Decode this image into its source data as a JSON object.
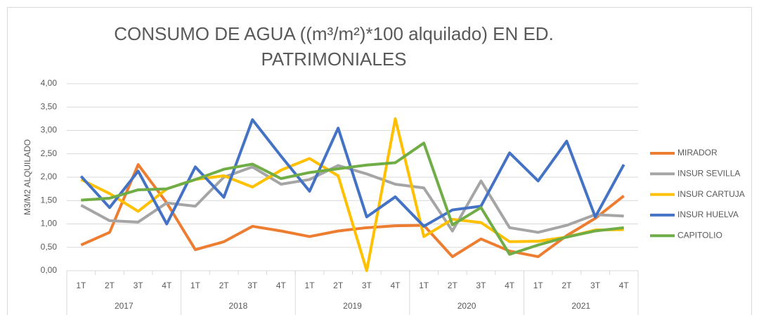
{
  "chart_data": {
    "type": "line",
    "title": [
      "CONSUMO DE AGUA ((m³/m²)*100 alquilado) EN ED.",
      "PATRIMONIALES"
    ],
    "y_label": "M3/M2 ALQUILADO",
    "categories": [
      "1T",
      "2T",
      "3T",
      "4T",
      "1T",
      "2T",
      "3T",
      "4T",
      "1T",
      "2T",
      "3T",
      "4T",
      "1T",
      "2T",
      "3T",
      "4T",
      "1T",
      "2T",
      "3T",
      "4T"
    ],
    "groups": [
      "2017",
      "2018",
      "2019",
      "2020",
      "2021"
    ],
    "ylim": [
      0,
      4
    ],
    "yticks": [
      {
        "value": 0,
        "label": "0,00"
      },
      {
        "value": 0.5,
        "label": "0,50"
      },
      {
        "value": 1,
        "label": "1,00"
      },
      {
        "value": 1.5,
        "label": "1,50"
      },
      {
        "value": 2,
        "label": "2,00"
      },
      {
        "value": 2.5,
        "label": "2,50"
      },
      {
        "value": 3,
        "label": "3,00"
      },
      {
        "value": 3.5,
        "label": "3,50"
      },
      {
        "value": 4,
        "label": "4,00"
      }
    ],
    "grid": true,
    "legend": "right",
    "series": [
      {
        "name": "MIRADOR",
        "color": "#ED7D31",
        "values": [
          0.55,
          0.82,
          2.27,
          1.45,
          0.45,
          0.62,
          0.95,
          0.85,
          0.73,
          0.85,
          0.92,
          0.96,
          0.97,
          0.3,
          0.68,
          0.42,
          0.3,
          0.75,
          1.12,
          1.6
        ]
      },
      {
        "name": "INSUR SEVILLA",
        "color": "#A5A5A5",
        "values": [
          1.4,
          1.07,
          1.04,
          1.45,
          1.38,
          2.0,
          2.22,
          1.85,
          1.95,
          2.25,
          2.07,
          1.85,
          1.77,
          0.85,
          1.92,
          0.92,
          0.82,
          0.97,
          1.2,
          1.17
        ]
      },
      {
        "name": "INSUR CARTUJA",
        "color": "#FFC000",
        "values": [
          1.95,
          1.65,
          1.27,
          1.75,
          1.95,
          2.03,
          1.79,
          2.15,
          2.4,
          2.03,
          0.0,
          3.25,
          0.73,
          1.1,
          1.03,
          0.62,
          0.63,
          0.72,
          0.87,
          0.88
        ]
      },
      {
        "name": "INSUR HUELVA",
        "color": "#4472C4",
        "values": [
          2.02,
          1.35,
          2.13,
          1.0,
          2.22,
          1.57,
          3.23,
          2.45,
          1.7,
          3.05,
          1.15,
          1.58,
          0.95,
          1.3,
          1.38,
          2.52,
          1.92,
          2.77,
          1.15,
          2.27
        ]
      },
      {
        "name": "CAPITOLIO",
        "color": "#70AD47",
        "values": [
          1.51,
          1.55,
          1.73,
          1.75,
          1.95,
          2.17,
          2.28,
          1.97,
          2.1,
          2.18,
          2.26,
          2.31,
          2.73,
          0.98,
          1.35,
          0.35,
          0.55,
          0.72,
          0.85,
          0.92
        ]
      }
    ]
  }
}
